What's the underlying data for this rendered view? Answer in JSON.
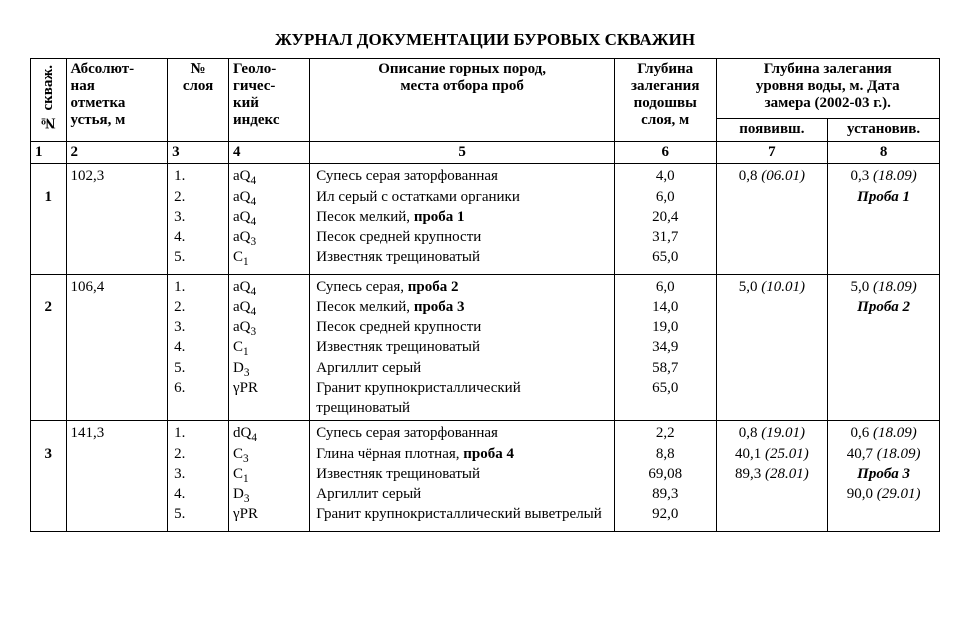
{
  "title": "ЖУРНАЛ ДОКУМЕНТАЦИИ БУРОВЫХ СКВАЖИН",
  "headers": {
    "col1": "№ скваж.",
    "col2": "Абсолют-\nная\nотметка\nустья,  м",
    "col3": "№\nслоя",
    "col4": "Геоло-\nгичес-\nкий\nиндекс",
    "col5": "Описание горных пород,\nместа отбора проб",
    "col6": "Глубина\nзалегания\nподошвы\nслоя, м",
    "col78_top": "Глубина залегания\nуровня воды, м. Дата\nзамера (2002-03 г.).",
    "col7": "появивш.",
    "col8": "установив."
  },
  "colnums": [
    "1",
    "2",
    "3",
    "4",
    "5",
    "6",
    "7",
    "8"
  ],
  "groups": [
    {
      "num": "1",
      "mark": "102,3",
      "layers": [
        "1.",
        "2.",
        "3.",
        "4.",
        "5."
      ],
      "idx": [
        "aQ<sub>4</sub>",
        "aQ<sub>4</sub>",
        "aQ<sub>4</sub>",
        "aQ<sub>3</sub>",
        "C<sub>1</sub>"
      ],
      "desc": [
        [
          {
            "t": "Супесь серая заторфованная"
          }
        ],
        [
          {
            "t": "Ил серый с остатками органики"
          }
        ],
        [
          {
            "t": "Песок мелкий, "
          },
          {
            "t": "проба 1",
            "cls": "bold"
          }
        ],
        [
          {
            "t": "Песок средней крупности"
          }
        ],
        [
          {
            "t": "Известняк трещиноватый"
          }
        ]
      ],
      "depth": [
        "4,0",
        "6,0",
        "20,4",
        "31,7",
        "65,0"
      ],
      "c7": [
        [
          {
            "t": "0,8 "
          },
          {
            "t": "(06.01)",
            "cls": "ital"
          }
        ]
      ],
      "c8": [
        [
          {
            "t": "0,3 "
          },
          {
            "t": "(18.09)",
            "cls": "ital"
          }
        ],
        [
          {
            "t": "Проба 1",
            "cls": "boldital"
          }
        ]
      ]
    },
    {
      "num": "2",
      "mark": "106,4",
      "layers": [
        "1.",
        "2.",
        "3.",
        "4.",
        "5.",
        "6."
      ],
      "idx": [
        "aQ<sub>4</sub>",
        "aQ<sub>4</sub>",
        "aQ<sub>3</sub>",
        "C<sub>1</sub>",
        "D<sub>3</sub>",
        "γPR"
      ],
      "desc": [
        [
          {
            "t": "Супесь серая, "
          },
          {
            "t": "проба 2",
            "cls": "bold"
          }
        ],
        [
          {
            "t": "Песок мелкий, "
          },
          {
            "t": "проба 3",
            "cls": "bold"
          }
        ],
        [
          {
            "t": "Песок средней крупности"
          }
        ],
        [
          {
            "t": "Известняк трещиноватый"
          }
        ],
        [
          {
            "t": "Аргиллит серый"
          }
        ],
        [
          {
            "t": "Гранит крупнокристаллический трещиноватый"
          }
        ]
      ],
      "depth": [
        "6,0",
        "14,0",
        "19,0",
        "34,9",
        "58,7",
        "65,0"
      ],
      "c7": [
        [
          {
            "t": "5,0 "
          },
          {
            "t": "(10.01)",
            "cls": "ital"
          }
        ]
      ],
      "c8": [
        [
          {
            "t": "5,0 "
          },
          {
            "t": "(18.09)",
            "cls": "ital"
          }
        ],
        [
          {
            "t": "Проба 2",
            "cls": "boldital"
          }
        ]
      ]
    },
    {
      "num": "3",
      "mark": "141,3",
      "layers": [
        "1.",
        "2.",
        "3.",
        "4.",
        "5."
      ],
      "idx": [
        "dQ<sub>4</sub>",
        "C<sub>3</sub>",
        "C<sub>1</sub>",
        "D<sub>3</sub>",
        "γPR"
      ],
      "desc": [
        [
          {
            "t": "Супесь серая заторфованная"
          }
        ],
        [
          {
            "t": "Глина чёрная плотная, "
          },
          {
            "t": "проба 4",
            "cls": "bold"
          }
        ],
        [
          {
            "t": "Известняк трещиноватый"
          }
        ],
        [
          {
            "t": "Аргиллит серый"
          }
        ],
        [
          {
            "t": "Гранит крупнокристаллический выветрелый"
          }
        ]
      ],
      "depth": [
        "2,2",
        "8,8",
        "69,08",
        "89,3",
        "92,0"
      ],
      "c7": [
        [
          {
            "t": "0,8 "
          },
          {
            "t": "(19.01)",
            "cls": "ital"
          }
        ],
        [
          {
            "t": ""
          }
        ],
        [
          {
            "t": "40,1 "
          },
          {
            "t": "(25.01)",
            "cls": "ital"
          }
        ],
        [
          {
            "t": ""
          }
        ],
        [
          {
            "t": "89,3 "
          },
          {
            "t": "(28.01)",
            "cls": "ital"
          }
        ]
      ],
      "c8": [
        [
          {
            "t": "0,6 "
          },
          {
            "t": "(18.09)",
            "cls": "ital"
          }
        ],
        [
          {
            "t": ""
          }
        ],
        [
          {
            "t": "40,7 "
          },
          {
            "t": "(18.09)",
            "cls": "ital"
          }
        ],
        [
          {
            "t": "Проба 3",
            "cls": "boldital"
          }
        ],
        [
          {
            "t": "90,0 "
          },
          {
            "t": "(29.01)",
            "cls": "ital"
          }
        ]
      ]
    }
  ]
}
